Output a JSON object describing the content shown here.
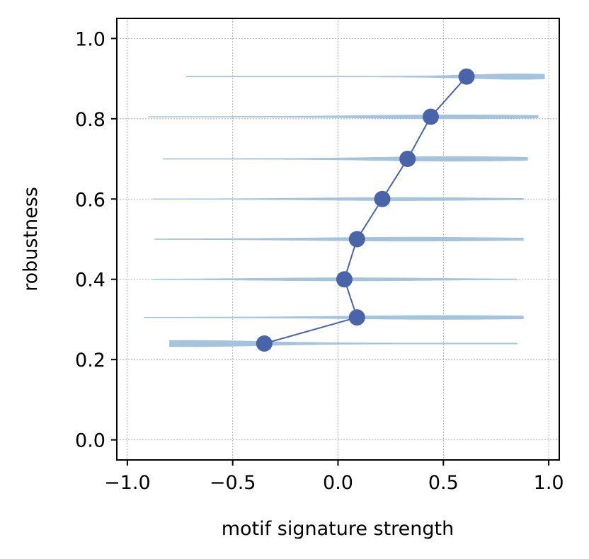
{
  "chart_data": {
    "type": "line",
    "title": "",
    "xlabel": "motif signature strength",
    "ylabel": "robustness",
    "xlim": [
      -1.05,
      1.05
    ],
    "ylim": [
      -0.05,
      1.05
    ],
    "x_ticks": [
      -1.0,
      -0.5,
      0.0,
      0.5,
      1.0
    ],
    "x_tick_labels": [
      "−1.0",
      "−0.5",
      "0.0",
      "0.5",
      "1.0"
    ],
    "y_ticks": [
      0.0,
      0.2,
      0.4,
      0.6,
      0.8,
      1.0
    ],
    "y_tick_labels": [
      "0.0",
      "0.2",
      "0.4",
      "0.6",
      "0.8",
      "1.0"
    ],
    "grid": true,
    "series": [
      {
        "points": [
          {
            "x": -0.35,
            "y": 0.24
          },
          {
            "x": 0.09,
            "y": 0.305
          },
          {
            "x": 0.03,
            "y": 0.4
          },
          {
            "x": 0.09,
            "y": 0.5
          },
          {
            "x": 0.21,
            "y": 0.6
          },
          {
            "x": 0.33,
            "y": 0.7
          },
          {
            "x": 0.44,
            "y": 0.805
          },
          {
            "x": 0.61,
            "y": 0.905
          }
        ]
      }
    ],
    "horizontal_violins": [
      {
        "y": 0.24,
        "xmin": -0.8,
        "xmax": 0.85,
        "peak": -0.72,
        "spread": 0.35,
        "max_half_height": 0.008
      },
      {
        "y": 0.305,
        "xmin": -0.92,
        "xmax": 0.88,
        "peak": 0.5,
        "spread": 0.45,
        "max_half_height": 0.005
      },
      {
        "y": 0.4,
        "xmin": -0.88,
        "xmax": 0.85,
        "peak": 0.05,
        "spread": 0.4,
        "max_half_height": 0.004
      },
      {
        "y": 0.5,
        "xmin": -0.87,
        "xmax": 0.88,
        "peak": 0.35,
        "spread": 0.45,
        "max_half_height": 0.005
      },
      {
        "y": 0.6,
        "xmin": -0.88,
        "xmax": 0.88,
        "peak": 0.3,
        "spread": 0.4,
        "max_half_height": 0.004
      },
      {
        "y": 0.7,
        "xmin": -0.83,
        "xmax": 0.9,
        "peak": 0.55,
        "spread": 0.35,
        "max_half_height": 0.006
      },
      {
        "y": 0.805,
        "xmin": -0.9,
        "xmax": 0.95,
        "peak": 0.55,
        "spread": 0.4,
        "max_half_height": 0.005
      },
      {
        "y": 0.905,
        "xmin": -0.72,
        "xmax": 0.98,
        "peak": 0.85,
        "spread": 0.22,
        "max_half_height": 0.007
      }
    ],
    "colors": {
      "line": "#4a64a8",
      "marker": "#4a64a8",
      "violin": "#a3c3de",
      "grid": "#a0a0a0",
      "axes": "#000000"
    }
  }
}
